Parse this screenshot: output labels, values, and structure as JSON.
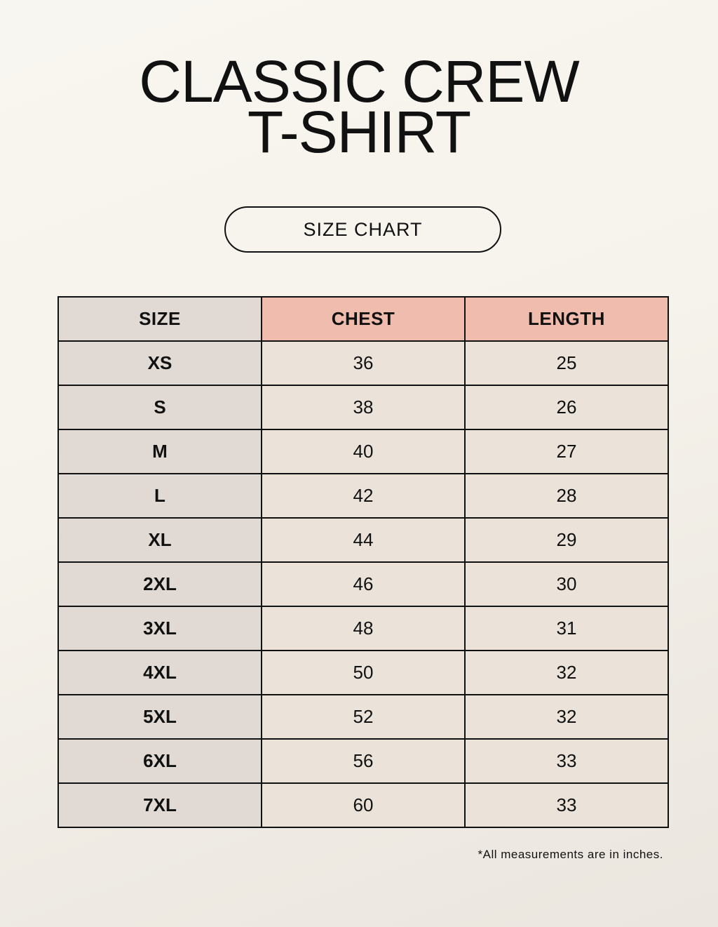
{
  "title": {
    "line1": "CLASSIC CREW",
    "line2": "T-SHIRT"
  },
  "badge": "SIZE CHART",
  "table": {
    "headers": [
      "SIZE",
      "CHEST",
      "LENGTH"
    ],
    "rows": [
      [
        "XS",
        "36",
        "25"
      ],
      [
        "S",
        "38",
        "26"
      ],
      [
        "M",
        "40",
        "27"
      ],
      [
        "L",
        "42",
        "28"
      ],
      [
        "XL",
        "44",
        "29"
      ],
      [
        "2XL",
        "46",
        "30"
      ],
      [
        "3XL",
        "48",
        "31"
      ],
      [
        "4XL",
        "50",
        "32"
      ],
      [
        "5XL",
        "52",
        "32"
      ],
      [
        "6XL",
        "56",
        "33"
      ],
      [
        "7XL",
        "60",
        "33"
      ]
    ]
  },
  "note": "*All measurements are in inches.",
  "colors": {
    "header_accent": "#efbcae",
    "size_column": "#e1dad4",
    "cell": "#ebe3d9"
  }
}
